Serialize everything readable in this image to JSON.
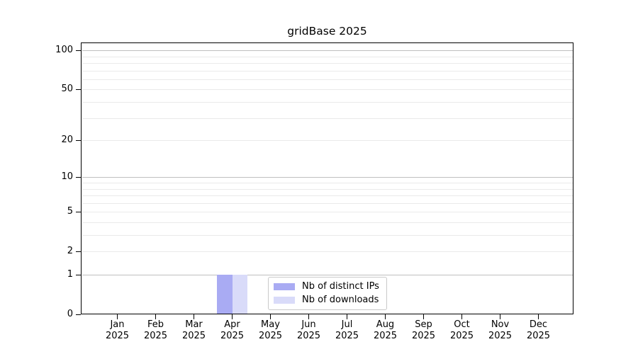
{
  "figure": {
    "title": "gridBase 2025"
  },
  "chart_data": {
    "type": "bar",
    "title": "gridBase 2025",
    "categories": [
      "Jan",
      "Feb",
      "Mar",
      "Apr",
      "May",
      "Jun",
      "Jul",
      "Aug",
      "Sep",
      "Oct",
      "Nov",
      "Dec"
    ],
    "year": "2025",
    "series": [
      {
        "name": "Nb of distinct IPs",
        "color": "#a9abf3",
        "values": [
          0,
          0,
          0,
          1,
          0,
          0,
          0,
          0,
          0,
          0,
          0,
          0
        ]
      },
      {
        "name": "Nb of downloads",
        "color": "#d9dbf9",
        "values": [
          0,
          0,
          0,
          1,
          0,
          0,
          0,
          0,
          0,
          0,
          0,
          0
        ]
      }
    ],
    "xlabel": "",
    "ylabel": "",
    "y_axis": {
      "scale": "log1p",
      "tick_values": [
        0,
        1,
        2,
        5,
        10,
        20,
        50,
        100
      ],
      "major_gridlines": [
        1,
        10,
        100
      ],
      "minor_gridlines": [
        2,
        3,
        4,
        5,
        6,
        7,
        8,
        9,
        20,
        30,
        40,
        50,
        60,
        70,
        80,
        90
      ],
      "range": [
        0,
        115
      ]
    },
    "grid": true,
    "legend": {
      "position": "bottom-center-inside",
      "items": [
        "Nb of distinct IPs",
        "Nb of downloads"
      ]
    },
    "colors": {
      "frame": "#000000",
      "major_grid": "#bfbfbf",
      "minor_grid": "#eaeaea",
      "background": "#ffffff"
    }
  }
}
